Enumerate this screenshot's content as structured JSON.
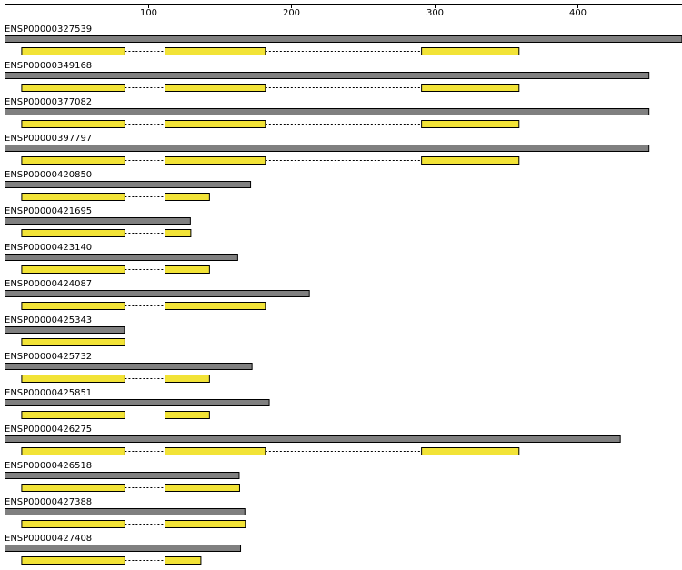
{
  "scale": {
    "ticks": [
      100,
      200,
      300,
      400
    ],
    "range": [
      0,
      473
    ]
  },
  "colors": {
    "protein_bar": "#808080",
    "protein_border": "#000000",
    "exon_fill": "#f2e337",
    "exon_border": "#000000",
    "intron_line": "#000000",
    "axis": "#000000"
  },
  "proteins": [
    {
      "id": "ENSP00000327539",
      "length": 473,
      "exons": [
        [
          12,
          84
        ],
        [
          112,
          182
        ],
        [
          291,
          359
        ]
      ]
    },
    {
      "id": "ENSP00000349168",
      "length": 450,
      "exons": [
        [
          12,
          84
        ],
        [
          112,
          182
        ],
        [
          291,
          359
        ]
      ]
    },
    {
      "id": "ENSP00000377082",
      "length": 450,
      "exons": [
        [
          12,
          84
        ],
        [
          112,
          182
        ],
        [
          291,
          359
        ]
      ]
    },
    {
      "id": "ENSP00000397797",
      "length": 450,
      "exons": [
        [
          12,
          84
        ],
        [
          112,
          182
        ],
        [
          291,
          359
        ]
      ]
    },
    {
      "id": "ENSP00000420850",
      "length": 172,
      "exons": [
        [
          12,
          84
        ],
        [
          112,
          143
        ]
      ]
    },
    {
      "id": "ENSP00000421695",
      "length": 130,
      "exons": [
        [
          12,
          84
        ],
        [
          112,
          130
        ]
      ]
    },
    {
      "id": "ENSP00000423140",
      "length": 163,
      "exons": [
        [
          12,
          84
        ],
        [
          112,
          143
        ]
      ]
    },
    {
      "id": "ENSP00000424087",
      "length": 213,
      "exons": [
        [
          12,
          84
        ],
        [
          112,
          182
        ]
      ]
    },
    {
      "id": "ENSP00000425343",
      "length": 84,
      "exons": [
        [
          12,
          84
        ]
      ]
    },
    {
      "id": "ENSP00000425732",
      "length": 173,
      "exons": [
        [
          12,
          84
        ],
        [
          112,
          143
        ]
      ]
    },
    {
      "id": "ENSP00000425851",
      "length": 185,
      "exons": [
        [
          12,
          84
        ],
        [
          112,
          143
        ]
      ]
    },
    {
      "id": "ENSP00000426275",
      "length": 430,
      "exons": [
        [
          12,
          84
        ],
        [
          112,
          182
        ],
        [
          291,
          359
        ]
      ]
    },
    {
      "id": "ENSP00000426518",
      "length": 164,
      "exons": [
        [
          12,
          84
        ],
        [
          112,
          164
        ]
      ]
    },
    {
      "id": "ENSP00000427388",
      "length": 168,
      "exons": [
        [
          12,
          84
        ],
        [
          112,
          168
        ]
      ]
    },
    {
      "id": "ENSP00000427408",
      "length": 165,
      "exons": [
        [
          12,
          84
        ],
        [
          112,
          137
        ]
      ]
    }
  ]
}
